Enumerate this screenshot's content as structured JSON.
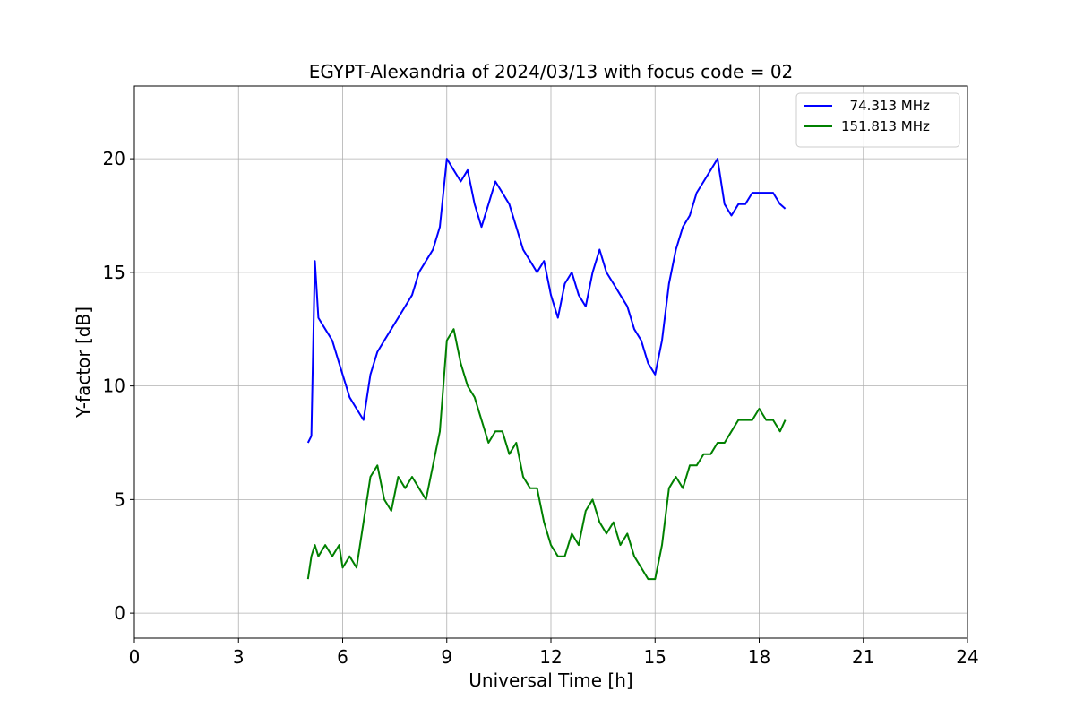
{
  "chart_data": {
    "type": "line",
    "title": "EGYPT-Alexandria of 2024/03/13 with focus code = 02",
    "xlabel": "Universal Time [h]",
    "ylabel": "Y-factor [dB]",
    "xlim": [
      0,
      24
    ],
    "ylim": [
      -1.1,
      23.2
    ],
    "xticks": [
      0,
      3,
      6,
      9,
      12,
      15,
      18,
      21,
      24
    ],
    "yticks": [
      0,
      5,
      10,
      15,
      20
    ],
    "grid": true,
    "legend_position": "top-right",
    "series": [
      {
        "name": "  74.313 MHz",
        "color": "#0000ff",
        "x": [
          5.0,
          5.1,
          5.2,
          5.3,
          5.5,
          5.7,
          5.9,
          6.0,
          6.2,
          6.4,
          6.6,
          6.8,
          7.0,
          7.2,
          7.4,
          7.6,
          7.8,
          8.0,
          8.2,
          8.4,
          8.6,
          8.8,
          9.0,
          9.2,
          9.4,
          9.6,
          9.8,
          10.0,
          10.2,
          10.4,
          10.6,
          10.8,
          11.0,
          11.2,
          11.4,
          11.6,
          11.8,
          12.0,
          12.2,
          12.4,
          12.6,
          12.8,
          13.0,
          13.2,
          13.4,
          13.6,
          13.8,
          14.0,
          14.2,
          14.4,
          14.6,
          14.8,
          15.0,
          15.2,
          15.4,
          15.6,
          15.8,
          16.0,
          16.2,
          16.4,
          16.6,
          16.8,
          17.0,
          17.2,
          17.4,
          17.6,
          17.8,
          18.0,
          18.2,
          18.4,
          18.6,
          18.75
        ],
        "y": [
          7.5,
          7.8,
          15.5,
          13.0,
          12.5,
          12.0,
          11.0,
          10.5,
          9.5,
          9.0,
          8.5,
          10.5,
          11.5,
          12.0,
          12.5,
          13.0,
          13.5,
          14.0,
          15.0,
          15.5,
          16.0,
          17.0,
          20.0,
          19.5,
          19.0,
          19.5,
          18.0,
          17.0,
          18.0,
          19.0,
          18.5,
          18.0,
          17.0,
          16.0,
          15.5,
          15.0,
          15.5,
          14.0,
          13.0,
          14.5,
          15.0,
          14.0,
          13.5,
          15.0,
          16.0,
          15.0,
          14.5,
          14.0,
          13.5,
          12.5,
          12.0,
          11.0,
          10.5,
          12.0,
          14.5,
          16.0,
          17.0,
          17.5,
          18.5,
          19.0,
          19.5,
          20.0,
          18.0,
          17.5,
          18.0,
          18.0,
          18.5,
          18.5,
          18.5,
          18.5,
          18.0,
          17.8
        ]
      },
      {
        "name": "151.813 MHz",
        "color": "#008000",
        "x": [
          5.0,
          5.1,
          5.2,
          5.3,
          5.5,
          5.7,
          5.9,
          6.0,
          6.2,
          6.4,
          6.6,
          6.8,
          7.0,
          7.2,
          7.4,
          7.6,
          7.8,
          8.0,
          8.2,
          8.4,
          8.6,
          8.8,
          9.0,
          9.2,
          9.4,
          9.6,
          9.8,
          10.0,
          10.2,
          10.4,
          10.6,
          10.8,
          11.0,
          11.2,
          11.4,
          11.6,
          11.8,
          12.0,
          12.2,
          12.4,
          12.6,
          12.8,
          13.0,
          13.2,
          13.4,
          13.6,
          13.8,
          14.0,
          14.2,
          14.4,
          14.6,
          14.8,
          15.0,
          15.2,
          15.4,
          15.6,
          15.8,
          16.0,
          16.2,
          16.4,
          16.6,
          16.8,
          17.0,
          17.2,
          17.4,
          17.6,
          17.8,
          18.0,
          18.2,
          18.4,
          18.6,
          18.75
        ],
        "y": [
          1.5,
          2.5,
          3.0,
          2.5,
          3.0,
          2.5,
          3.0,
          2.0,
          2.5,
          2.0,
          4.0,
          6.0,
          6.5,
          5.0,
          4.5,
          6.0,
          5.5,
          6.0,
          5.5,
          5.0,
          6.5,
          8.0,
          12.0,
          12.5,
          11.0,
          10.0,
          9.5,
          8.5,
          7.5,
          8.0,
          8.0,
          7.0,
          7.5,
          6.0,
          5.5,
          5.5,
          4.0,
          3.0,
          2.5,
          2.5,
          3.5,
          3.0,
          4.5,
          5.0,
          4.0,
          3.5,
          4.0,
          3.0,
          3.5,
          2.5,
          2.0,
          1.5,
          1.5,
          3.0,
          5.5,
          6.0,
          5.5,
          6.5,
          6.5,
          7.0,
          7.0,
          7.5,
          7.5,
          8.0,
          8.5,
          8.5,
          8.5,
          9.0,
          8.5,
          8.5,
          8.0,
          8.5
        ]
      }
    ]
  }
}
